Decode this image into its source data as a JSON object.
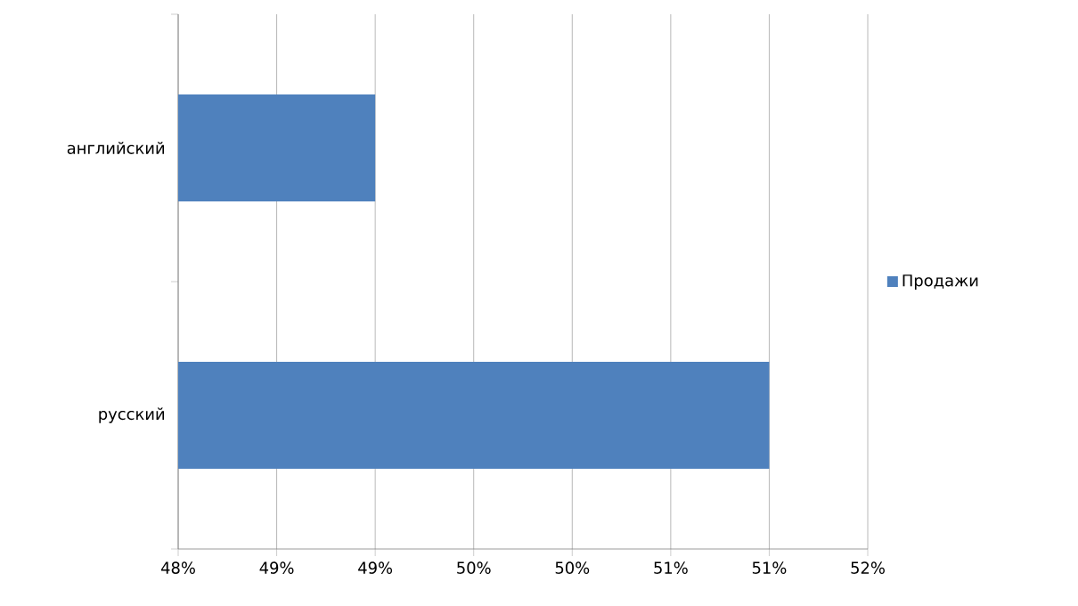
{
  "chart_data": {
    "type": "bar",
    "orientation": "horizontal",
    "categories": [
      "английский",
      "русский"
    ],
    "series": [
      {
        "name": "Продажи",
        "color": "#4f81bd",
        "values": [
          49,
          51
        ]
      }
    ],
    "xlim": [
      48,
      51.5
    ],
    "xticks": [
      {
        "value": 48,
        "label": "48%"
      },
      {
        "value": 48.5,
        "label": "49%"
      },
      {
        "value": 49,
        "label": "49%"
      },
      {
        "value": 49.5,
        "label": "50%"
      },
      {
        "value": 50,
        "label": "50%"
      },
      {
        "value": 50.5,
        "label": "51%"
      },
      {
        "value": 51,
        "label": "51%"
      },
      {
        "value": 51.5,
        "label": "52%"
      }
    ],
    "grid": "x",
    "legend": "right"
  }
}
